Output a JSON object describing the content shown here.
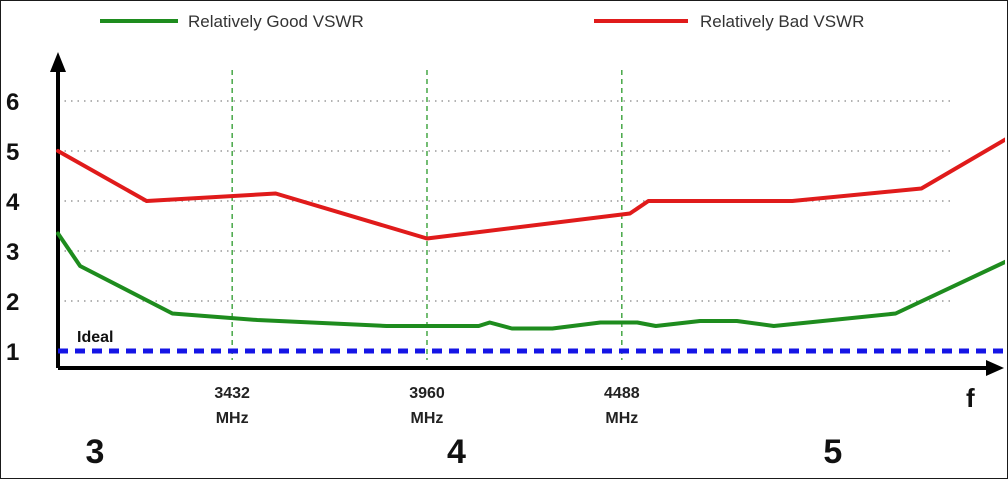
{
  "chart_data": {
    "type": "line",
    "title": "",
    "xlabel": "f",
    "ylabel": "",
    "ylim": [
      0.7,
      7.0
    ],
    "xlim": [
      2960,
      5540
    ],
    "y_ticks": [
      "1",
      "2",
      "3",
      "4",
      "5",
      "6"
    ],
    "x_ticks": [
      {
        "value": 3432,
        "line1": "3432",
        "line2": "MHz"
      },
      {
        "value": 3960,
        "line1": "3960",
        "line2": "MHz"
      },
      {
        "value": 4488,
        "line1": "4488",
        "line2": "MHz"
      }
    ],
    "band_labels": [
      {
        "x": 3060,
        "text": "3"
      },
      {
        "x": 4040,
        "text": "4"
      },
      {
        "x": 5060,
        "text": "5"
      }
    ],
    "grid": "horizontal dotted at each integer y; vertical dashed green at 3432, 3960, 4488 MHz",
    "legend_position": "top",
    "series": [
      {
        "name": "Relatively Good VSWR",
        "color": "#1e8c1e",
        "x": [
          2960,
          3020,
          3270,
          3500,
          3850,
          4100,
          4130,
          4190,
          4300,
          4430,
          4530,
          4580,
          4700,
          4800,
          4900,
          5230,
          5590,
          5740
        ],
        "y": [
          3.35,
          2.7,
          1.75,
          1.62,
          1.5,
          1.5,
          1.57,
          1.45,
          1.45,
          1.57,
          1.57,
          1.5,
          1.6,
          1.6,
          1.5,
          1.75,
          3.0,
          4.8
        ]
      },
      {
        "name": "Relatively Bad VSWR",
        "color": "#e01b1b",
        "x": [
          2960,
          3200,
          3550,
          3960,
          4510,
          4560,
          4950,
          5300,
          5590,
          5740
        ],
        "y": [
          5.0,
          4.0,
          4.15,
          3.25,
          3.75,
          4.0,
          4.0,
          4.25,
          5.5,
          6.7
        ]
      },
      {
        "name": "Ideal",
        "color": "#1515e6",
        "x": [
          2960,
          5590
        ],
        "y": [
          1.0,
          1.0
        ]
      }
    ]
  }
}
